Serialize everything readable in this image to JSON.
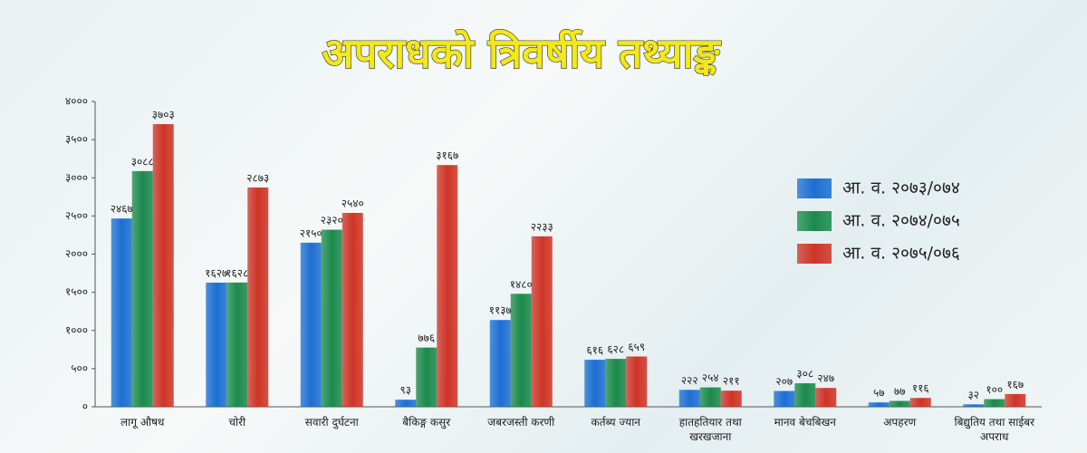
{
  "chart_data": {
    "type": "bar",
    "title": "अपराधको त्रिवर्षीय तथ्याङ्क",
    "categories": [
      "लागू औषध",
      "चोरी",
      "सवारी दुर्घटना",
      "बैकिङ्ग कसुर",
      "जबरजस्ती करणी",
      "कर्तब्य ज्यान",
      "हातहतियार तथा खरखजाना",
      "मानव बेचबिखन",
      "अपहरण",
      "बिद्युतिय तथा साईबर अपराध"
    ],
    "series": [
      {
        "name": "आ. व. २०७३/०७४",
        "color": "#1c6fd2",
        "values": [
          2467,
          1627,
          2150,
          93,
          1137,
          616,
          222,
          207,
          57,
          32
        ],
        "value_labels": [
          "२४६७",
          "१६२७",
          "२१५०",
          "९३",
          "११३७",
          "६१६",
          "२२२",
          "२०७",
          "५७",
          "३२"
        ]
      },
      {
        "name": "आ. व. २०७४/०७५",
        "color": "#1b8a4c",
        "values": [
          3088,
          1628,
          2320,
          776,
          1480,
          628,
          254,
          308,
          77,
          100
        ],
        "value_labels": [
          "३०८८",
          "१६२८",
          "२३२०",
          "७७६",
          "१४८०",
          "६२८",
          "२५४",
          "३०८",
          "७७",
          "१००"
        ]
      },
      {
        "name": "आ. व. २०७५/०७६",
        "color": "#cf3426",
        "values": [
          3703,
          2873,
          2540,
          3167,
          2233,
          659,
          211,
          247,
          116,
          167
        ],
        "value_labels": [
          "३७०३",
          "२८७३",
          "२५४०",
          "३१६७",
          "२२३३",
          "६५९",
          "२११",
          "२४७",
          "११६",
          "१६७"
        ]
      }
    ],
    "ylim": [
      0,
      4000
    ],
    "yticks": [
      {
        "value": 0,
        "label": "०"
      },
      {
        "value": 500,
        "label": "५००"
      },
      {
        "value": 1000,
        "label": "१०००"
      },
      {
        "value": 1500,
        "label": "१५००"
      },
      {
        "value": 2000,
        "label": "२०००"
      },
      {
        "value": 2500,
        "label": "२५००"
      },
      {
        "value": 3000,
        "label": "३०००"
      },
      {
        "value": 3500,
        "label": "३५००"
      },
      {
        "value": 4000,
        "label": "४०००"
      }
    ],
    "legend": "right"
  }
}
